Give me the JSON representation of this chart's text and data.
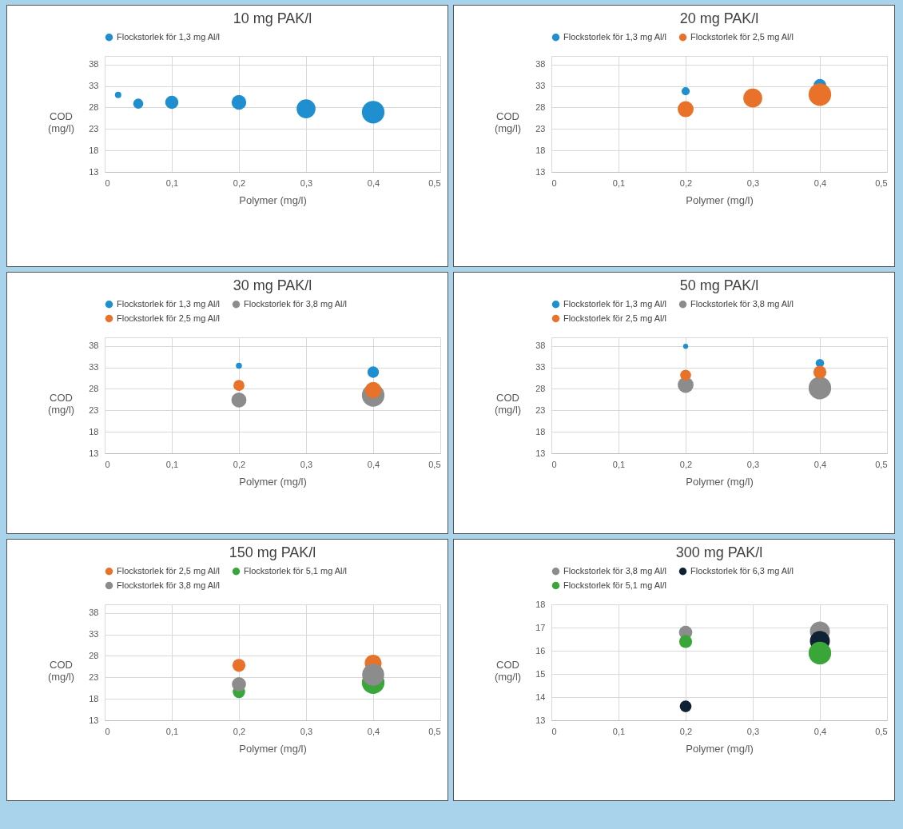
{
  "chart_data": [
    {
      "type": "bubble",
      "title": "10 mg PAK/l",
      "xlabel": "Polymer (mg/l)",
      "ylabel": "COD (mg/l)",
      "xlim": [
        0,
        0.5
      ],
      "ylim": [
        13,
        40
      ],
      "xticks": [
        {
          "value": 0,
          "label": "0"
        },
        {
          "value": 0.1,
          "label": "0,1"
        },
        {
          "value": 0.2,
          "label": "0,2"
        },
        {
          "value": 0.3,
          "label": "0,3"
        },
        {
          "value": 0.4,
          "label": "0,4"
        },
        {
          "value": 0.5,
          "label": "0,5"
        }
      ],
      "yticks": [
        13,
        18,
        23,
        28,
        33,
        38
      ],
      "grid": true,
      "legend": "top",
      "marker": "circle",
      "series": [
        {
          "name": "Flockstorlek för 1,3 mg Al/l",
          "color": "#1f8fcf",
          "x": [
            0.02,
            0.05,
            0.1,
            0.2,
            0.3,
            0.4
          ],
          "values": [
            30.9,
            28.9,
            29.2,
            29.2,
            27.7,
            26.9
          ],
          "sizes": [
            0.08,
            0.2,
            0.34,
            0.42,
            0.7,
            1
          ]
        }
      ]
    },
    {
      "type": "bubble",
      "title": "20 mg PAK/l",
      "xlabel": "Polymer (mg/l)",
      "ylabel": "COD (mg/l)",
      "xlim": [
        0,
        0.5
      ],
      "ylim": [
        13,
        40
      ],
      "xticks": [
        {
          "value": 0,
          "label": "0"
        },
        {
          "value": 0.1,
          "label": "0,1"
        },
        {
          "value": 0.2,
          "label": "0,2"
        },
        {
          "value": 0.3,
          "label": "0,3"
        },
        {
          "value": 0.4,
          "label": "0,4"
        },
        {
          "value": 0.5,
          "label": "0,5"
        }
      ],
      "yticks": [
        13,
        18,
        23,
        28,
        33,
        38
      ],
      "grid": true,
      "legend": "top",
      "marker": "circle",
      "series": [
        {
          "name": "Flockstorlek för 1,3 mg Al/l",
          "color": "#1f8fcf",
          "x": [
            0.2,
            0.4
          ],
          "values": [
            31.8,
            33.2
          ],
          "sizes": [
            0.13,
            0.3
          ]
        },
        {
          "name": "Flockstorlek för 2,5 mg Al/l",
          "color": "#e8722a",
          "x": [
            0.2,
            0.3,
            0.4
          ],
          "values": [
            27.6,
            30.2,
            31.0
          ],
          "sizes": [
            0.5,
            0.7,
            1
          ]
        }
      ]
    },
    {
      "type": "bubble",
      "title": "30 mg PAK/l",
      "xlabel": "Polymer (mg/l)",
      "ylabel": "COD (mg/l)",
      "xlim": [
        0,
        0.5
      ],
      "ylim": [
        13,
        40
      ],
      "xticks": [
        {
          "value": 0,
          "label": "0"
        },
        {
          "value": 0.1,
          "label": "0,1"
        },
        {
          "value": 0.2,
          "label": "0,2"
        },
        {
          "value": 0.3,
          "label": "0,3"
        },
        {
          "value": 0.4,
          "label": "0,4"
        },
        {
          "value": 0.5,
          "label": "0,5"
        }
      ],
      "yticks": [
        13,
        18,
        23,
        28,
        33,
        38
      ],
      "grid": true,
      "legend": "top",
      "marker": "circle",
      "series": [
        {
          "name": "Flockstorlek för 1,3 mg Al/l",
          "color": "#1f8fcf",
          "x": [
            0.2,
            0.4
          ],
          "values": [
            33.4,
            31.9
          ],
          "sizes": [
            0.07,
            0.26
          ]
        },
        {
          "name": "Flockstorlek för 3,8 mg Al/l",
          "color": "#8c8c8c",
          "x": [
            0.2,
            0.4
          ],
          "values": [
            25.4,
            26.5
          ],
          "sizes": [
            0.44,
            1
          ]
        },
        {
          "name": "Flockstorlek för 2,5 mg Al/l",
          "color": "#e8722a",
          "x": [
            0.2,
            0.4
          ],
          "values": [
            28.8,
            27.7
          ],
          "sizes": [
            0.24,
            0.52
          ]
        }
      ]
    },
    {
      "type": "bubble",
      "title": "50 mg PAK/l",
      "xlabel": "Polymer (mg/l)",
      "ylabel": "COD (mg/l)",
      "xlim": [
        0,
        0.5
      ],
      "ylim": [
        13,
        40
      ],
      "xticks": [
        {
          "value": 0,
          "label": "0"
        },
        {
          "value": 0.1,
          "label": "0,1"
        },
        {
          "value": 0.2,
          "label": "0,2"
        },
        {
          "value": 0.3,
          "label": "0,3"
        },
        {
          "value": 0.4,
          "label": "0,4"
        },
        {
          "value": 0.5,
          "label": "0,5"
        }
      ],
      "yticks": [
        13,
        18,
        23,
        28,
        33,
        38
      ],
      "grid": true,
      "legend": "top",
      "marker": "circle",
      "series": [
        {
          "name": "Flockstorlek för 1,3 mg Al/l",
          "color": "#1f8fcf",
          "x": [
            0.2,
            0.4
          ],
          "values": [
            37.9,
            34.0
          ],
          "sizes": [
            0.05,
            0.14
          ]
        },
        {
          "name": "Flockstorlek för 3,8 mg Al/l",
          "color": "#8c8c8c",
          "x": [
            0.2,
            0.4
          ],
          "values": [
            28.9,
            28.2
          ],
          "sizes": [
            0.49,
            1
          ]
        },
        {
          "name": "Flockstorlek för 2,5 mg Al/l",
          "color": "#e8722a",
          "x": [
            0.2,
            0.4
          ],
          "values": [
            31.2,
            31.9
          ],
          "sizes": [
            0.23,
            0.33
          ]
        }
      ]
    },
    {
      "type": "bubble",
      "title": "150 mg PAK/l",
      "xlabel": "Polymer (mg/l)",
      "ylabel": "COD (mg/l)",
      "xlim": [
        0,
        0.5
      ],
      "ylim": [
        13,
        40
      ],
      "xticks": [
        {
          "value": 0,
          "label": "0"
        },
        {
          "value": 0.1,
          "label": "0,1"
        },
        {
          "value": 0.2,
          "label": "0,2"
        },
        {
          "value": 0.3,
          "label": "0,3"
        },
        {
          "value": 0.4,
          "label": "0,4"
        },
        {
          "value": 0.5,
          "label": "0,5"
        }
      ],
      "yticks": [
        13,
        18,
        23,
        28,
        33,
        38
      ],
      "grid": true,
      "legend": "top",
      "marker": "circle",
      "series": [
        {
          "name": "Flockstorlek för 2,5 mg Al/l",
          "color": "#e8722a",
          "x": [
            0.2,
            0.4
          ],
          "values": [
            25.8,
            26.3
          ],
          "sizes": [
            0.33,
            0.56
          ]
        },
        {
          "name": "Flockstorlek för 5,1 mg Al/l",
          "color": "#3aa63a",
          "x": [
            0.2,
            0.4
          ],
          "values": [
            19.6,
            21.8
          ],
          "sizes": [
            0.3,
            1
          ]
        },
        {
          "name": "Flockstorlek för 3,8 mg Al/l",
          "color": "#8c8c8c",
          "x": [
            0.2,
            0.4
          ],
          "values": [
            21.4,
            23.6
          ],
          "sizes": [
            0.39,
            0.95
          ]
        }
      ]
    },
    {
      "type": "bubble",
      "title": "300 mg PAK/l",
      "xlabel": "Polymer (mg/l)",
      "ylabel": "COD (mg/l)",
      "xlim": [
        0,
        0.5
      ],
      "ylim": [
        13,
        18
      ],
      "xticks": [
        {
          "value": 0,
          "label": "0"
        },
        {
          "value": 0.1,
          "label": "0,1"
        },
        {
          "value": 0.2,
          "label": "0,2"
        },
        {
          "value": 0.3,
          "label": "0,3"
        },
        {
          "value": 0.4,
          "label": "0,4"
        },
        {
          "value": 0.5,
          "label": "0,5"
        }
      ],
      "yticks": [
        13,
        14,
        15,
        16,
        17,
        18
      ],
      "grid": true,
      "legend": "top",
      "marker": "circle",
      "series": [
        {
          "name": "Flockstorlek för 3,8 mg Al/l",
          "color": "#8c8c8c",
          "x": [
            0.2,
            0.4
          ],
          "values": [
            16.79,
            16.83
          ],
          "sizes": [
            0.35,
            0.78
          ]
        },
        {
          "name": "Flockstorlek för 6,3 mg Al/l",
          "color": "#0f2233",
          "x": [
            0.2,
            0.4
          ],
          "values": [
            13.6,
            16.42
          ],
          "sizes": [
            0.27,
            0.78
          ]
        },
        {
          "name": "Flockstorlek för 5,1 mg Al/l",
          "color": "#3aa63a",
          "x": [
            0.2,
            0.4
          ],
          "values": [
            16.4,
            15.9
          ],
          "sizes": [
            0.33,
            1
          ]
        }
      ]
    }
  ]
}
